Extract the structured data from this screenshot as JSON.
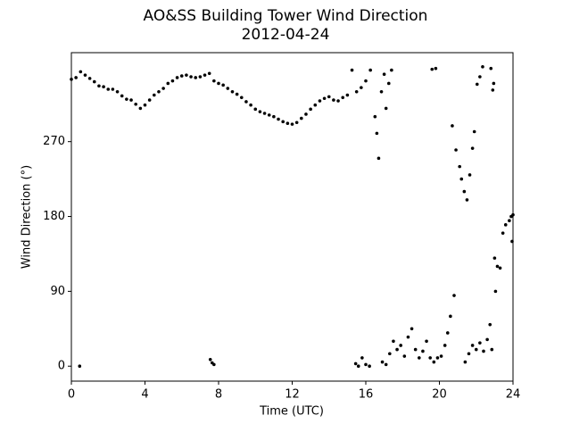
{
  "chart_data": {
    "type": "scatter",
    "title": "AO&SS Building Tower Wind Direction",
    "subtitle": "2012-04-24",
    "x_label": "Time (UTC)",
    "y_label": "Wind Direction (°)",
    "color": "#000000",
    "xlim": [
      0,
      24
    ],
    "xticks": [
      0,
      4,
      8,
      12,
      16,
      20,
      24
    ],
    "ylim": [
      -18,
      377
    ],
    "yticks": [
      0,
      90,
      180,
      270
    ],
    "x": [
      0,
      0.25,
      0.5,
      0.75,
      1,
      1.25,
      1.5,
      1.75,
      2,
      2.25,
      2.5,
      2.75,
      3,
      3.25,
      3.5,
      3.75,
      4,
      4.25,
      4.5,
      4.75,
      5,
      5.25,
      5.5,
      5.75,
      6,
      6.25,
      6.5,
      6.75,
      7,
      7.25,
      7.5,
      7.75,
      8,
      8.25,
      8.5,
      8.75,
      9,
      9.25,
      9.5,
      9.75,
      10,
      10.25,
      10.5,
      10.75,
      11,
      11.25,
      11.5,
      11.75,
      12,
      12.25,
      12.5,
      12.75,
      13,
      13.25,
      13.5,
      13.75,
      14,
      14.25,
      14.5,
      14.75,
      15,
      15.25,
      15.5,
      15.75,
      16,
      16.25,
      16.5,
      16.6,
      16.7,
      16.85,
      17,
      17.1,
      17.25,
      17.4,
      19.6,
      19.8,
      20.7,
      20.9,
      21.1,
      21.2,
      21.35,
      21.5,
      21.65,
      21.8,
      21.9,
      22.05,
      22.2,
      22.35,
      22.8,
      22.9,
      22.95,
      23,
      23.15,
      23.3,
      23.45,
      23.6,
      23.8,
      23.9,
      23.95,
      24,
      0.45,
      7.55,
      7.65,
      7.75,
      15.45,
      15.6,
      15.8,
      16,
      16.2,
      16.9,
      17.1,
      17.3,
      17.5,
      17.7,
      17.9,
      18.1,
      18.3,
      18.5,
      18.7,
      18.9,
      19.1,
      19.3,
      19.5,
      19.7,
      19.9,
      20.1,
      20.3,
      20.45,
      20.6,
      20.8,
      21.4,
      21.6,
      21.8,
      22,
      22.2,
      22.4,
      22.6,
      22.75,
      22.85,
      23.05
    ],
    "values": [
      345,
      347,
      354,
      350,
      346,
      342,
      337,
      336,
      333,
      333,
      330,
      325,
      321,
      320,
      315,
      310,
      314,
      320,
      326,
      330,
      334,
      340,
      343,
      347,
      349,
      350,
      348,
      347,
      348,
      350,
      352,
      343,
      340,
      338,
      334,
      330,
      327,
      323,
      318,
      314,
      309,
      306,
      304,
      302,
      300,
      297,
      294,
      292,
      291,
      293,
      298,
      303,
      309,
      314,
      319,
      322,
      324,
      320,
      319,
      323,
      326,
      356,
      330,
      335,
      343,
      356,
      300,
      280,
      250,
      330,
      351,
      310,
      340,
      356,
      357,
      358,
      289,
      260,
      240,
      225,
      210,
      200,
      230,
      262,
      282,
      339,
      348,
      360,
      358,
      332,
      340,
      130,
      120,
      118,
      160,
      170,
      175,
      180,
      150,
      182,
      0,
      8,
      4,
      2,
      3,
      0,
      10,
      2,
      0,
      5,
      2,
      15,
      30,
      20,
      25,
      12,
      35,
      45,
      20,
      10,
      18,
      30,
      10,
      5,
      10,
      12,
      25,
      40,
      60,
      85,
      5,
      15,
      25,
      20,
      28,
      18,
      32,
      50,
      20,
      90
    ]
  }
}
